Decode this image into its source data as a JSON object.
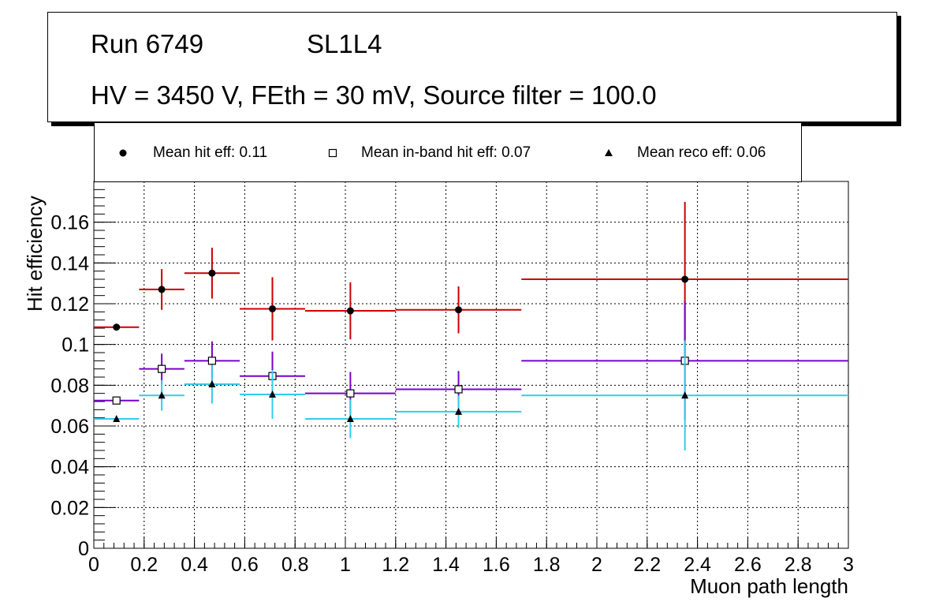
{
  "chart_data": {
    "type": "scatter",
    "title_lines": [
      "Run 6749",
      "SL1L4",
      "HV = 3450 V, FEth = 30 mV, Source filter = 100.0"
    ],
    "xlabel": "Muon path length",
    "ylabel": "Hit efficiency",
    "xlim": [
      0,
      3
    ],
    "ylim": [
      0,
      0.18
    ],
    "x_ticks": [
      0,
      0.2,
      0.4,
      0.6,
      0.8,
      1,
      1.2,
      1.4,
      1.6,
      1.8,
      2,
      2.2,
      2.4,
      2.6,
      2.8,
      3
    ],
    "x_tick_labels": [
      "0",
      "0.2",
      "0.4",
      "0.6",
      "0.8",
      "1",
      "1.2",
      "1.4",
      "1.6",
      "1.8",
      "2",
      "2.2",
      "2.4",
      "2.6",
      "2.8",
      "3"
    ],
    "y_ticks": [
      0,
      0.02,
      0.04,
      0.06,
      0.08,
      0.1,
      0.12,
      0.14,
      0.16
    ],
    "y_tick_labels": [
      "0",
      "0.02",
      "0.04",
      "0.06",
      "0.08",
      "0.1",
      "0.12",
      "0.14",
      "0.16"
    ],
    "grid": true,
    "legend": [
      {
        "label": "Mean hit  eff: 0.11",
        "marker": "circle"
      },
      {
        "label": "Mean in-band hit eff: 0.07",
        "marker": "open-square"
      },
      {
        "label": "Mean reco eff: 0.06",
        "marker": "triangle"
      }
    ],
    "series": [
      {
        "name": "Mean hit eff",
        "color": "#cc0000",
        "marker": "circle",
        "points": [
          {
            "x": 0.09,
            "xlo": 0.0,
            "xhi": 0.18,
            "y": 0.1085,
            "err": 0.001
          },
          {
            "x": 0.27,
            "xlo": 0.18,
            "xhi": 0.36,
            "y": 0.127,
            "err": 0.01
          },
          {
            "x": 0.47,
            "xlo": 0.36,
            "xhi": 0.58,
            "y": 0.135,
            "err": 0.0125
          },
          {
            "x": 0.71,
            "xlo": 0.58,
            "xhi": 0.84,
            "y": 0.1175,
            "err": 0.0155
          },
          {
            "x": 1.02,
            "xlo": 0.84,
            "xhi": 1.2,
            "y": 0.1165,
            "err": 0.014
          },
          {
            "x": 1.45,
            "xlo": 1.2,
            "xhi": 1.7,
            "y": 0.117,
            "err": 0.0115
          },
          {
            "x": 2.35,
            "xlo": 1.7,
            "xhi": 3.0,
            "y": 0.132,
            "err": 0.038
          }
        ]
      },
      {
        "name": "Mean in-band hit eff",
        "color": "#7700cc",
        "marker": "open-square",
        "points": [
          {
            "x": 0.09,
            "xlo": 0.0,
            "xhi": 0.18,
            "y": 0.0725,
            "err": 0.001
          },
          {
            "x": 0.27,
            "xlo": 0.18,
            "xhi": 0.36,
            "y": 0.088,
            "err": 0.0075
          },
          {
            "x": 0.47,
            "xlo": 0.36,
            "xhi": 0.58,
            "y": 0.092,
            "err": 0.0095
          },
          {
            "x": 0.71,
            "xlo": 0.58,
            "xhi": 0.84,
            "y": 0.0845,
            "err": 0.012
          },
          {
            "x": 1.02,
            "xlo": 0.84,
            "xhi": 1.2,
            "y": 0.076,
            "err": 0.0105
          },
          {
            "x": 1.45,
            "xlo": 1.2,
            "xhi": 1.7,
            "y": 0.078,
            "err": 0.009
          },
          {
            "x": 2.35,
            "xlo": 1.7,
            "xhi": 3.0,
            "y": 0.092,
            "err": 0.029
          }
        ]
      },
      {
        "name": "Mean reco eff",
        "color": "#33ccee",
        "marker": "triangle",
        "points": [
          {
            "x": 0.09,
            "xlo": 0.0,
            "xhi": 0.18,
            "y": 0.0635,
            "err": 0.001
          },
          {
            "x": 0.27,
            "xlo": 0.18,
            "xhi": 0.36,
            "y": 0.075,
            "err": 0.0075
          },
          {
            "x": 0.47,
            "xlo": 0.36,
            "xhi": 0.58,
            "y": 0.0805,
            "err": 0.0095
          },
          {
            "x": 0.71,
            "xlo": 0.58,
            "xhi": 0.84,
            "y": 0.0755,
            "err": 0.012
          },
          {
            "x": 1.02,
            "xlo": 0.84,
            "xhi": 1.2,
            "y": 0.0635,
            "err": 0.0095
          },
          {
            "x": 1.45,
            "xlo": 1.2,
            "xhi": 1.7,
            "y": 0.067,
            "err": 0.008
          },
          {
            "x": 2.35,
            "xlo": 1.7,
            "xhi": 3.0,
            "y": 0.075,
            "err": 0.027
          }
        ]
      }
    ]
  }
}
